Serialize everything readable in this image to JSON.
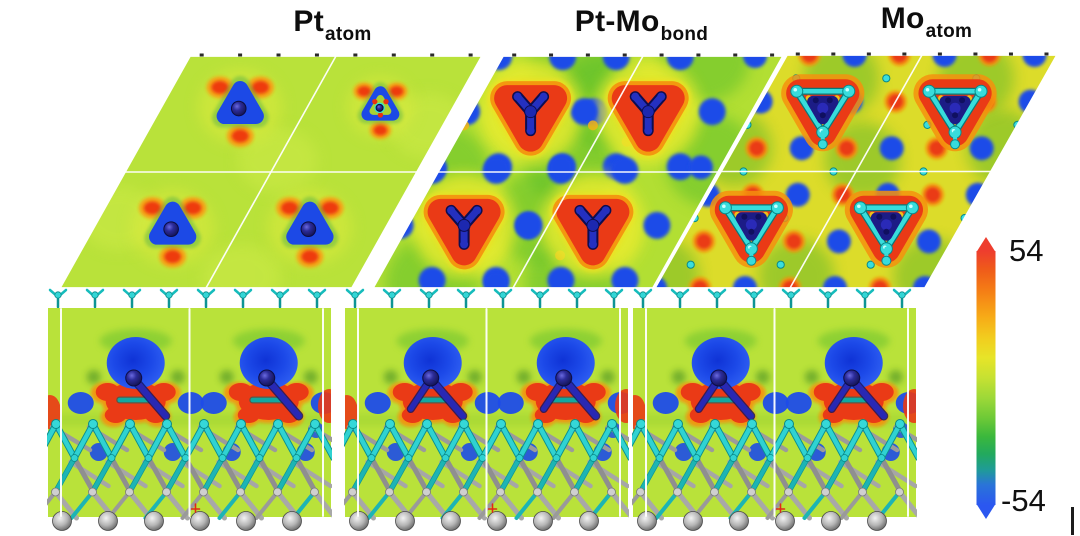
{
  "figure": {
    "titles": [
      {
        "main": "Pt",
        "sub": "atom"
      },
      {
        "main": "Pt-Mo",
        "sub": "bond"
      },
      {
        "main": "Mo",
        "sub": "atom"
      }
    ],
    "colorbar": {
      "max_label": "54",
      "min_label": "-54"
    }
  },
  "chart_data": {
    "type": "heatmap",
    "subtype": "charge-density-difference-maps",
    "legend_position": "right",
    "colorbar": {
      "min": -54,
      "max": 54,
      "orientation": "vertical",
      "stops": [
        [
          0,
          "#ee3d2e"
        ],
        [
          0.07,
          "#ef5a1a"
        ],
        [
          0.16,
          "#f57f15"
        ],
        [
          0.26,
          "#f7ab17"
        ],
        [
          0.34,
          "#f2cc1e"
        ],
        [
          0.42,
          "#e7e428"
        ],
        [
          0.5,
          "#c6e132"
        ],
        [
          0.58,
          "#9cd838"
        ],
        [
          0.66,
          "#6cc937"
        ],
        [
          0.73,
          "#3bb83c"
        ],
        [
          0.8,
          "#22a95e"
        ],
        [
          0.86,
          "#1f9c96"
        ],
        [
          0.92,
          "#2a74d8"
        ],
        [
          1,
          "#2b57f0"
        ]
      ]
    },
    "palette": {
      "positive_red": "#ea3a16",
      "negative_blue": "#1d4ce8",
      "background_green": "#b9e23a",
      "background_green_2": "#b2df33",
      "background_yellow_3": "#dcdc2a",
      "orange_fringe": "#f5920e",
      "cyan_atoms": "#2fd6d6",
      "navy_atoms": "#22228a",
      "gray_atoms": "#b5b5b5"
    },
    "panels": [
      {
        "id": "pt-atom",
        "label": "Pt atom",
        "views": [
          "top",
          "side"
        ],
        "top_features": [
          {
            "u": 0.27,
            "v": 0.78,
            "kind": "adatom"
          },
          {
            "u": 0.75,
            "v": 0.78,
            "kind": "adatom-ring"
          },
          {
            "u": 0.27,
            "v": 0.26,
            "kind": "adatom"
          },
          {
            "u": 0.74,
            "v": 0.26,
            "kind": "adatom"
          }
        ],
        "side_features": {
          "fx": [
            0.31,
            0.78
          ],
          "bonds": 1
        }
      },
      {
        "id": "pt-mo-bond",
        "label": "Pt-Mo bond",
        "views": [
          "top",
          "side"
        ],
        "top_features": [
          {
            "u": 0.21,
            "v": 0.76,
            "kind": "trimer-red"
          },
          {
            "u": 0.63,
            "v": 0.76,
            "kind": "trimer-red"
          },
          {
            "u": 0.2,
            "v": 0.27,
            "kind": "trimer-red"
          },
          {
            "u": 0.66,
            "v": 0.27,
            "kind": "trimer-red"
          }
        ],
        "side_features": {
          "fx": [
            0.31,
            0.78
          ],
          "bonds": 2
        }
      },
      {
        "id": "mo-atom",
        "label": "Mo atom",
        "views": [
          "top",
          "side"
        ],
        "top_features": [
          {
            "u": 0.24,
            "v": 0.78,
            "kind": "mo-trimer"
          },
          {
            "u": 0.73,
            "v": 0.78,
            "kind": "mo-trimer"
          },
          {
            "u": 0.22,
            "v": 0.28,
            "kind": "mo-trimer"
          },
          {
            "u": 0.72,
            "v": 0.28,
            "kind": "mo-trimer"
          }
        ],
        "side_features": {
          "fx": [
            0.31,
            0.78
          ],
          "bonds": 2
        }
      }
    ]
  }
}
